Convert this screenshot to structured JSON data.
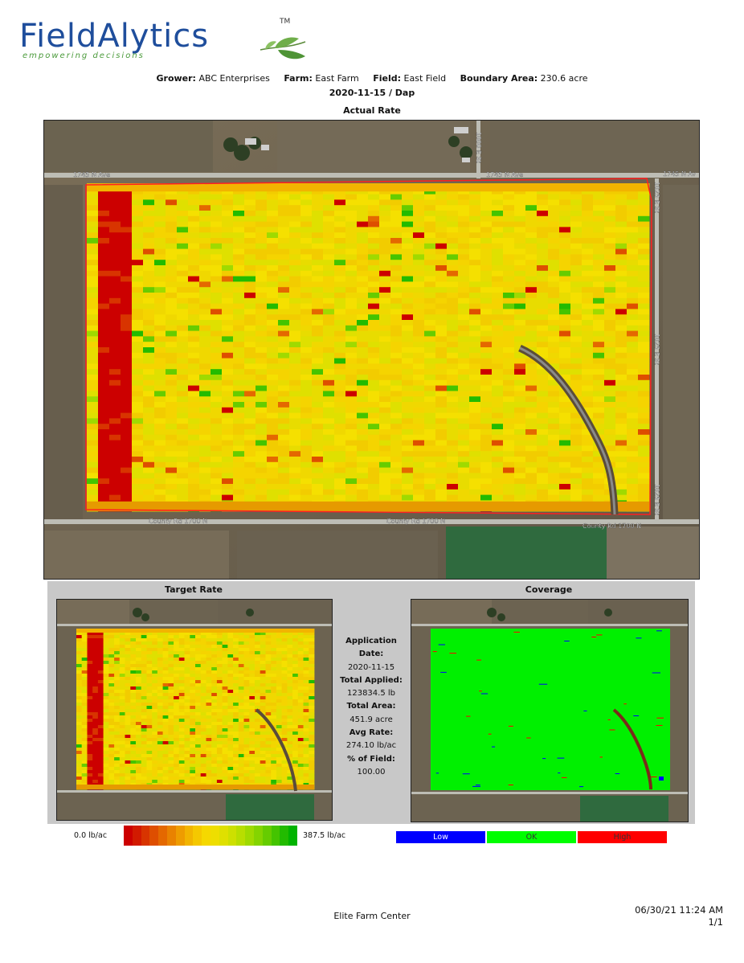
{
  "logo": {
    "brand": "FieldAlytics",
    "tagline": "empowering decisions",
    "tm": "TM"
  },
  "header": {
    "grower_label": "Grower:",
    "grower": "ABC Enterprises",
    "farm_label": "Farm:",
    "farm": "East Farm",
    "field_label": "Field:",
    "field": "East Field",
    "boundary_label": "Boundary Area:",
    "boundary": "230.6 acre",
    "date_product": "2020-11-15 / Dap",
    "main_map_title": "Actual Rate"
  },
  "map_labels": {
    "road_n_left": "1745 N Ave",
    "road_n_mid": "1745 N Ave",
    "road_n_right": "1745 N Av",
    "road_e_top": "1000 E St",
    "road_e_right_top": "1025 E St",
    "road_e_right_mid": "1025 E St",
    "road_e_right_bot": "1025 E St",
    "road_s_left": "County Rd 1700 N",
    "road_s_mid": "County Rd 1700 N",
    "road_s_right": "County Rd 1700 N"
  },
  "panels": {
    "target_title": "Target Rate",
    "coverage_title": "Coverage"
  },
  "stats": {
    "app_date_label": "Application Date:",
    "app_date": "2020-11-15",
    "total_applied_label": "Total Applied:",
    "total_applied": "123834.5 lb",
    "total_area_label": "Total Area:",
    "total_area": "451.9 acre",
    "avg_rate_label": "Avg Rate:",
    "avg_rate": "274.10 lb/ac",
    "pct_field_label": "% of Field:",
    "pct_field": "100.00"
  },
  "rate_legend": {
    "min": "0.0 lb/ac",
    "max": "387.5 lb/ac",
    "colors": [
      "#cc0000",
      "#d21a00",
      "#d83400",
      "#de4e00",
      "#e46800",
      "#e98200",
      "#ee9c00",
      "#f2b400",
      "#f5c800",
      "#f5d800",
      "#eede00",
      "#dfe000",
      "#cde000",
      "#b8de00",
      "#9fda00",
      "#84d400",
      "#66cc00",
      "#44c400",
      "#22bb00",
      "#00b300"
    ]
  },
  "coverage_legend": {
    "low": "Low",
    "ok": "OK",
    "high": "High",
    "low_color": "#0000ff",
    "ok_color": "#00ff00",
    "high_color": "#ff0000"
  },
  "footer": {
    "company": "Elite Farm Center",
    "timestamp": "06/30/21 11:24 AM",
    "page": "1/1"
  }
}
